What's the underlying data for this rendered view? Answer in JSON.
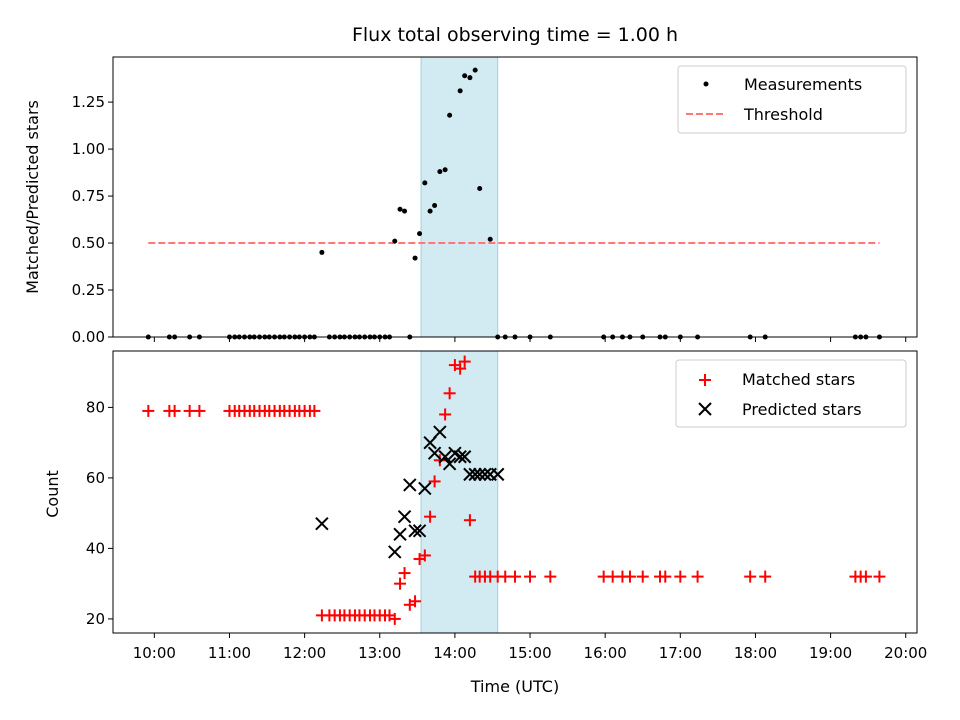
{
  "chart_data": {
    "type": "scatter",
    "title": "Flux total observing time = 1.00 h",
    "xlabel": "Time (UTC)",
    "x_ticks": [
      10,
      11,
      12,
      13,
      14,
      15,
      16,
      17,
      18,
      19,
      20
    ],
    "x_tick_labels": [
      "10:00",
      "11:00",
      "12:00",
      "13:00",
      "14:00",
      "15:00",
      "16:00",
      "17:00",
      "18:00",
      "19:00",
      "20:00"
    ],
    "xlim": [
      9.45,
      20.15
    ],
    "highlight_span": [
      13.55,
      14.57
    ],
    "colors": {
      "span_fill": "#add8e6",
      "measurements": "#000000",
      "threshold": "#ff7777",
      "matched": "#ff0000",
      "predicted": "#000000"
    },
    "panels": [
      {
        "ylabel": "Matched/Predicted stars",
        "ylim": [
          0,
          1.49
        ],
        "y_ticks": [
          0,
          0.25,
          0.5,
          0.75,
          1.0,
          1.25
        ],
        "y_tick_labels": [
          "0.00",
          "0.25",
          "0.50",
          "0.75",
          "1.00",
          "1.25"
        ],
        "legend": {
          "position": "top-right",
          "entries": [
            "Measurements",
            "Threshold"
          ]
        },
        "threshold": {
          "name": "Threshold",
          "value": 0.5,
          "x_range": [
            9.92,
            19.65
          ]
        },
        "series": [
          {
            "name": "Measurements",
            "marker": "dot",
            "x": [
              9.92,
              10.2,
              10.27,
              10.47,
              10.6,
              11.0,
              11.07,
              11.13,
              11.2,
              11.27,
              11.33,
              11.4,
              11.47,
              11.53,
              11.6,
              11.67,
              11.73,
              11.8,
              11.87,
              11.93,
              12.0,
              12.07,
              12.13,
              12.23,
              12.33,
              12.4,
              12.47,
              12.53,
              12.6,
              12.67,
              12.73,
              12.8,
              12.87,
              12.93,
              13.0,
              13.07,
              13.13,
              13.2,
              13.27,
              13.33,
              13.4,
              13.47,
              13.53,
              13.6,
              13.67,
              13.73,
              13.8,
              13.87,
              13.93,
              14.07,
              14.13,
              14.2,
              14.27,
              14.33,
              14.47,
              14.57,
              14.67,
              14.8,
              15.0,
              15.27,
              15.98,
              16.1,
              16.23,
              16.33,
              16.5,
              16.73,
              16.8,
              17.0,
              17.23,
              17.93,
              18.13,
              19.33,
              19.4,
              19.47,
              19.65
            ],
            "y": [
              0,
              0,
              0,
              0,
              0,
              0,
              0,
              0,
              0,
              0,
              0,
              0,
              0,
              0,
              0,
              0,
              0,
              0,
              0,
              0,
              0,
              0,
              0,
              0.45,
              0,
              0,
              0,
              0,
              0,
              0,
              0,
              0,
              0,
              0,
              0,
              0,
              0,
              0.51,
              0.68,
              0.67,
              0,
              0.42,
              0.55,
              0.82,
              0.67,
              0.7,
              0.88,
              0.89,
              1.18,
              1.31,
              1.39,
              1.38,
              1.42,
              0.79,
              0.52,
              0,
              0,
              0,
              0,
              0,
              0,
              0,
              0,
              0,
              0,
              0,
              0,
              0,
              0,
              0,
              0,
              0,
              0,
              0,
              0
            ]
          }
        ]
      },
      {
        "ylabel": "Count",
        "ylim": [
          16,
          96
        ],
        "y_ticks": [
          20,
          40,
          60,
          80
        ],
        "y_tick_labels": [
          "20",
          "40",
          "60",
          "80"
        ],
        "legend": {
          "position": "top-right",
          "entries": [
            "Matched stars",
            "Predicted stars"
          ]
        },
        "series": [
          {
            "name": "Matched stars",
            "marker": "plus",
            "x": [
              9.92,
              10.2,
              10.27,
              10.47,
              10.6,
              11.0,
              11.07,
              11.13,
              11.2,
              11.27,
              11.33,
              11.4,
              11.47,
              11.53,
              11.6,
              11.67,
              11.73,
              11.8,
              11.87,
              11.93,
              12.0,
              12.07,
              12.13,
              12.23,
              12.33,
              12.4,
              12.47,
              12.53,
              12.6,
              12.67,
              12.73,
              12.8,
              12.87,
              12.93,
              13.0,
              13.07,
              13.13,
              13.2,
              13.27,
              13.33,
              13.4,
              13.47,
              13.53,
              13.6,
              13.67,
              13.73,
              13.8,
              13.87,
              13.93,
              14.0,
              14.07,
              14.13,
              14.2,
              14.27,
              14.33,
              14.4,
              14.47,
              14.57,
              14.67,
              14.8,
              15.0,
              15.27,
              15.98,
              16.1,
              16.23,
              16.33,
              16.5,
              16.73,
              16.8,
              17.0,
              17.23,
              17.93,
              18.13,
              19.33,
              19.4,
              19.47,
              19.65
            ],
            "y": [
              79,
              79,
              79,
              79,
              79,
              79,
              79,
              79,
              79,
              79,
              79,
              79,
              79,
              79,
              79,
              79,
              79,
              79,
              79,
              79,
              79,
              79,
              79,
              21,
              21,
              21,
              21,
              21,
              21,
              21,
              21,
              21,
              21,
              21,
              21,
              21,
              21,
              20,
              30,
              33,
              24,
              25,
              37,
              38,
              49,
              59,
              65,
              78,
              84,
              92,
              91,
              93,
              48,
              32,
              32,
              32,
              32,
              32,
              32,
              32,
              32,
              32,
              32,
              32,
              32,
              32,
              32,
              32,
              32,
              32,
              32,
              32,
              32,
              32,
              32,
              32,
              32
            ]
          },
          {
            "name": "Predicted stars",
            "marker": "x",
            "x": [
              12.23,
              13.2,
              13.27,
              13.33,
              13.4,
              13.47,
              13.53,
              13.6,
              13.67,
              13.73,
              13.8,
              13.87,
              13.93,
              14.0,
              14.07,
              14.13,
              14.2,
              14.27,
              14.33,
              14.4,
              14.47,
              14.57
            ],
            "y": [
              47,
              39,
              44,
              49,
              58,
              45,
              45,
              57,
              70,
              67,
              73,
              66,
              64,
              67,
              66,
              66,
              61,
              61,
              61,
              61,
              61,
              61
            ]
          }
        ]
      }
    ]
  }
}
